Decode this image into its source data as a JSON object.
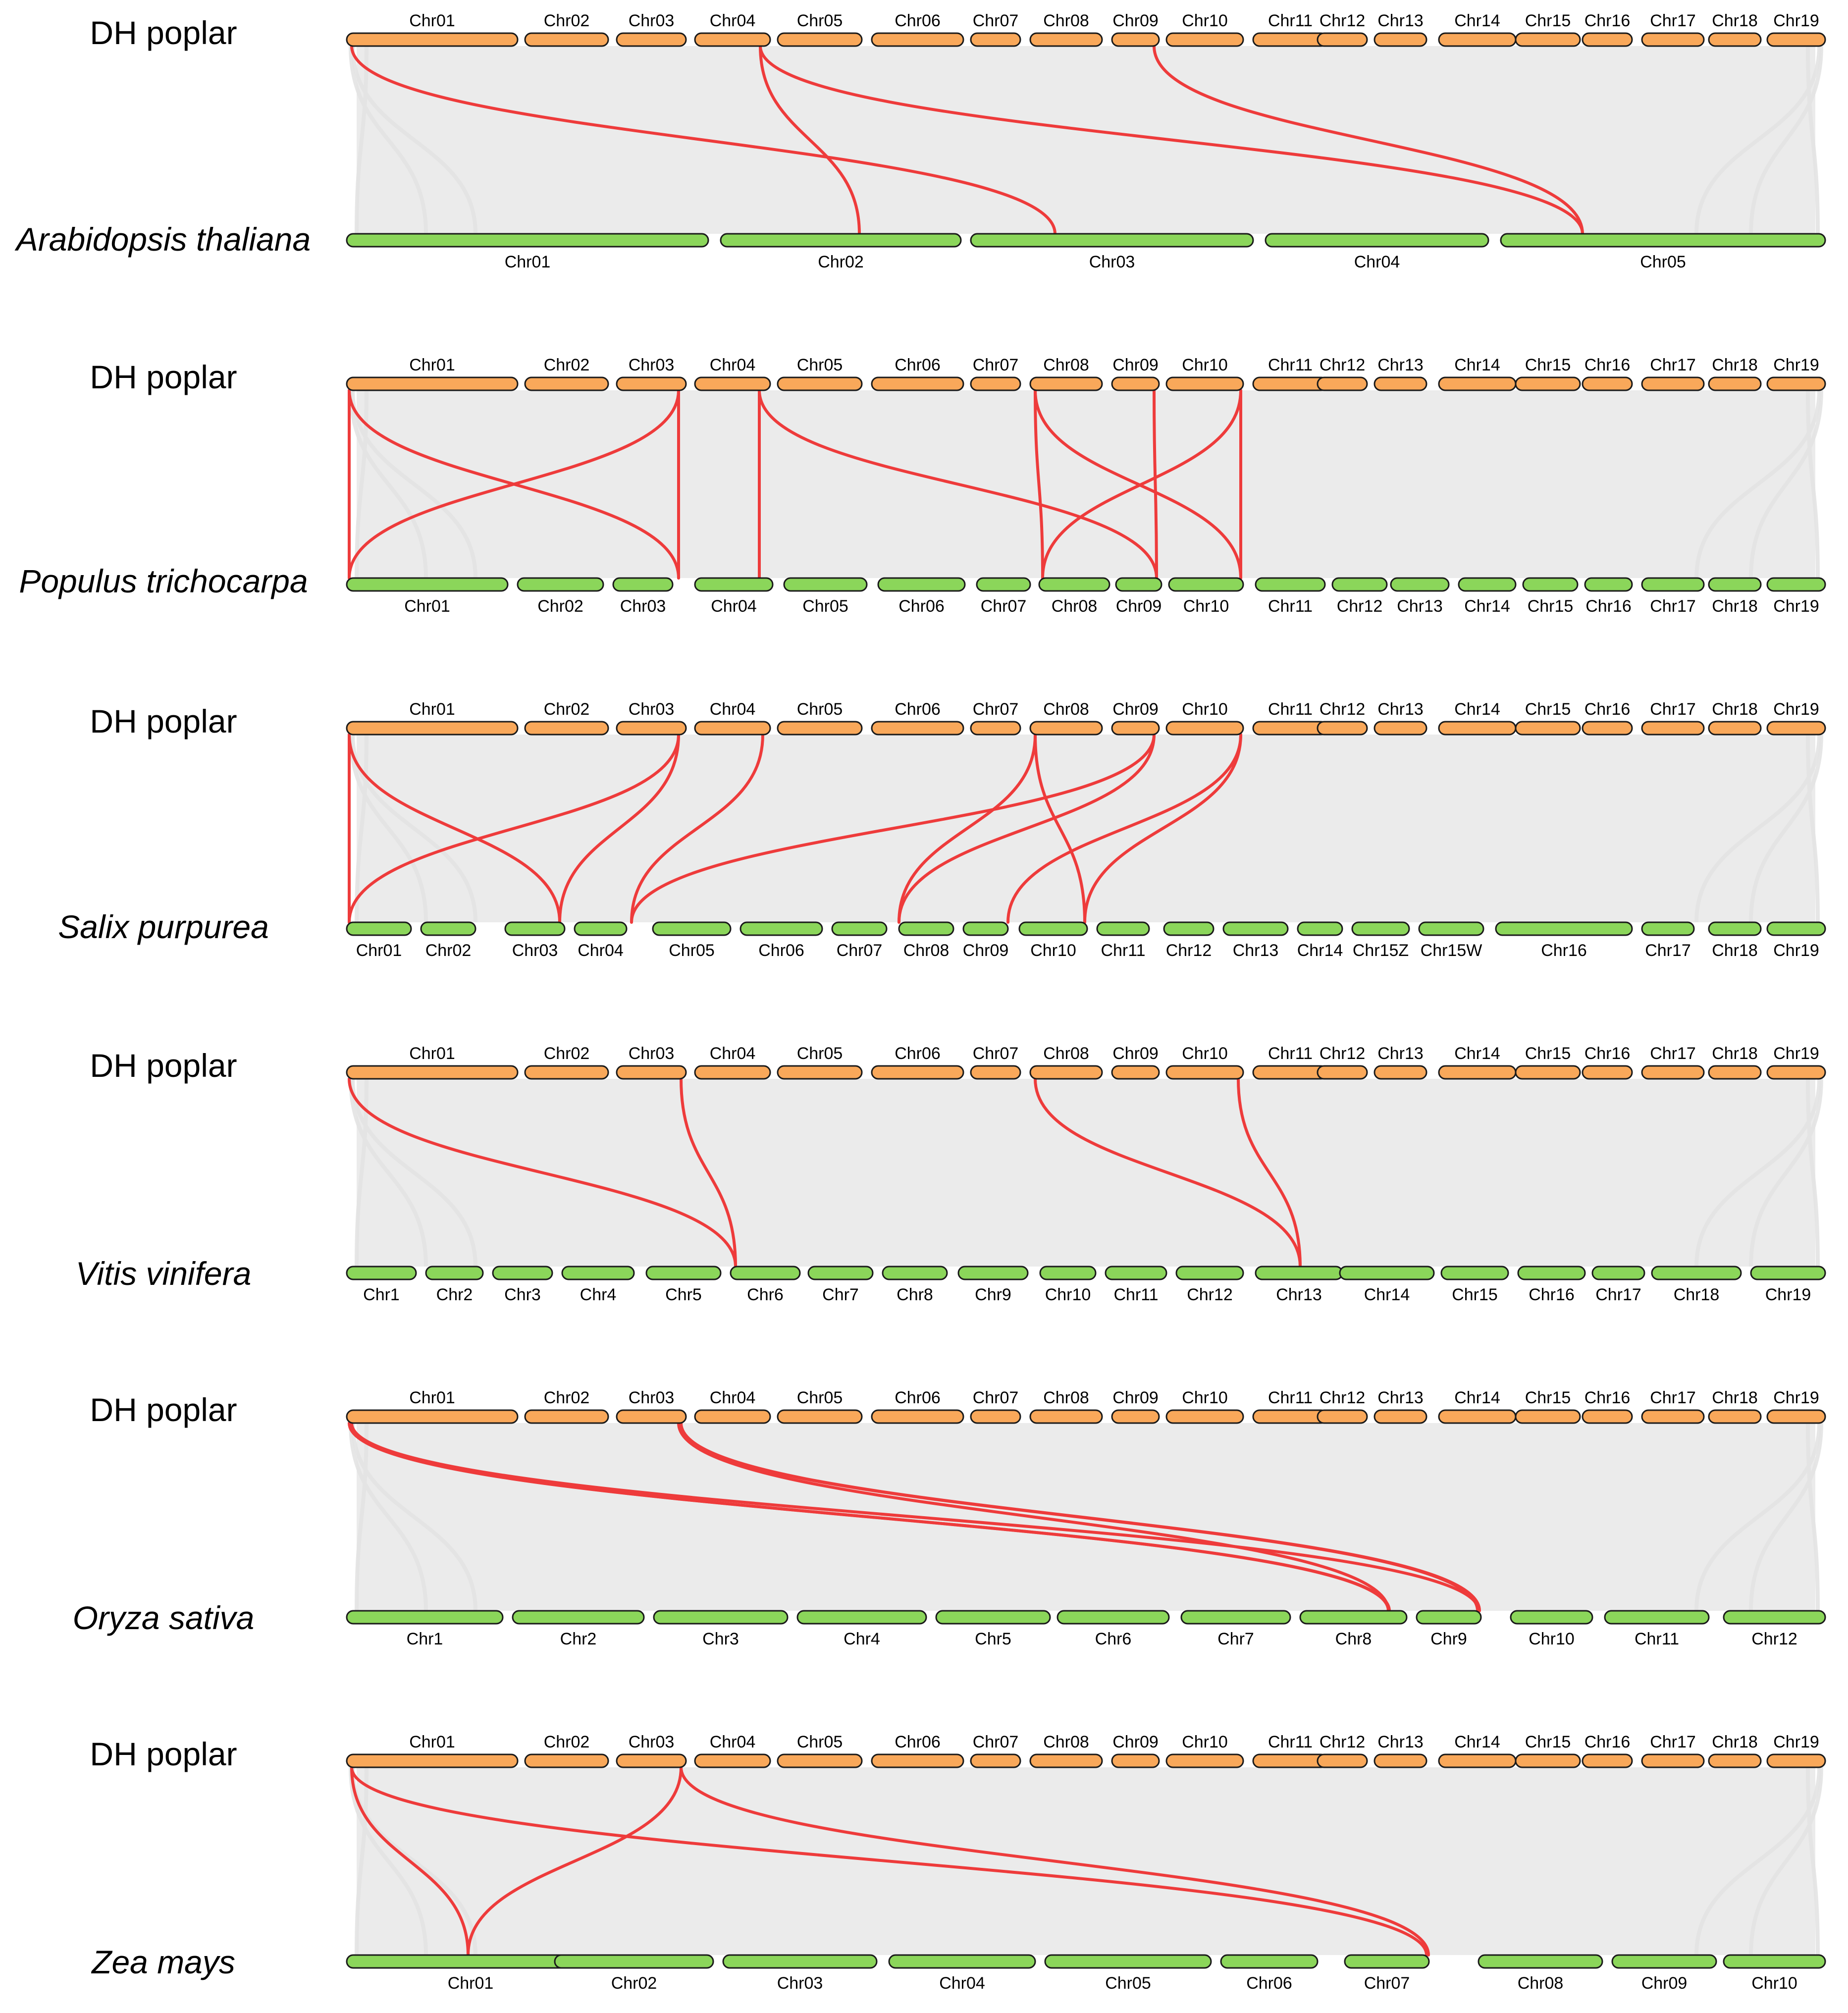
{
  "colors": {
    "reference_chromosome": "#F9A85A",
    "target_chromosome": "#8BD65A",
    "chromosome_outline": "#1a1a1a",
    "background_synteny": "#EBEBEB",
    "highlight_link": "#EE3B3B"
  },
  "reference_chromosomes": [
    "Chr01",
    "Chr02",
    "Chr03",
    "Chr04",
    "Chr05",
    "Chr06",
    "Chr07",
    "Chr08",
    "Chr09",
    "Chr10",
    "Chr11",
    "Chr12",
    "Chr13",
    "Chr14",
    "Chr15",
    "Chr16",
    "Chr17",
    "Chr18",
    "Chr19"
  ],
  "panels": [
    {
      "reference_label": "DH poplar",
      "target_label": "Arabidopsis thaliana",
      "target_chromosomes": [
        "Chr01",
        "Chr02",
        "Chr03",
        "Chr04",
        "Chr05"
      ],
      "links": [
        {
          "ref": "Chr01",
          "target": "Chr03"
        },
        {
          "ref": "Chr04",
          "target": "Chr02"
        },
        {
          "ref": "Chr04",
          "target": "Chr05"
        },
        {
          "ref": "Chr09",
          "target": "Chr05"
        }
      ]
    },
    {
      "reference_label": "DH poplar",
      "target_label": "Populus trichocarpa",
      "target_chromosomes": [
        "Chr01",
        "Chr02",
        "Chr03",
        "Chr04",
        "Chr05",
        "Chr06",
        "Chr07",
        "Chr08",
        "Chr09",
        "Chr10",
        "Chr11",
        "Chr12",
        "Chr13",
        "Chr14",
        "Chr15",
        "Chr16",
        "Chr17",
        "Chr18",
        "Chr19"
      ],
      "links": [
        {
          "ref": "Chr01",
          "target": "Chr01"
        },
        {
          "ref": "Chr01",
          "target": "Chr03"
        },
        {
          "ref": "Chr03",
          "target": "Chr01"
        },
        {
          "ref": "Chr03",
          "target": "Chr03"
        },
        {
          "ref": "Chr04",
          "target": "Chr04"
        },
        {
          "ref": "Chr04",
          "target": "Chr09"
        },
        {
          "ref": "Chr08",
          "target": "Chr08"
        },
        {
          "ref": "Chr08",
          "target": "Chr10"
        },
        {
          "ref": "Chr09",
          "target": "Chr09"
        },
        {
          "ref": "Chr10",
          "target": "Chr08"
        },
        {
          "ref": "Chr10",
          "target": "Chr10"
        }
      ]
    },
    {
      "reference_label": "DH poplar",
      "target_label": "Salix purpurea",
      "target_chromosomes": [
        "Chr01",
        "Chr02",
        "Chr03",
        "Chr04",
        "Chr05",
        "Chr06",
        "Chr07",
        "Chr08",
        "Chr09",
        "Chr10",
        "Chr11",
        "Chr12",
        "Chr13",
        "Chr14",
        "Chr15Z",
        "Chr15W",
        "Chr16",
        "Chr17",
        "Chr18",
        "Chr19"
      ],
      "links": [
        {
          "ref": "Chr01",
          "target": "Chr01"
        },
        {
          "ref": "Chr01",
          "target": "Chr03"
        },
        {
          "ref": "Chr03",
          "target": "Chr01"
        },
        {
          "ref": "Chr03",
          "target": "Chr03"
        },
        {
          "ref": "Chr04",
          "target": "Chr04"
        },
        {
          "ref": "Chr09",
          "target": "Chr04"
        },
        {
          "ref": "Chr08",
          "target": "Chr08"
        },
        {
          "ref": "Chr08",
          "target": "Chr10"
        },
        {
          "ref": "Chr09",
          "target": "Chr08"
        },
        {
          "ref": "Chr10",
          "target": "Chr09"
        },
        {
          "ref": "Chr10",
          "target": "Chr10"
        }
      ]
    },
    {
      "reference_label": "DH poplar",
      "target_label": "Vitis vinifera",
      "target_chromosomes": [
        "Chr1",
        "Chr2",
        "Chr3",
        "Chr4",
        "Chr5",
        "Chr6",
        "Chr7",
        "Chr8",
        "Chr9",
        "Chr10",
        "Chr11",
        "Chr12",
        "Chr13",
        "Chr14",
        "Chr15",
        "Chr16",
        "Chr17",
        "Chr18",
        "Chr19"
      ],
      "links": [
        {
          "ref": "Chr01",
          "target": "Chr6"
        },
        {
          "ref": "Chr03",
          "target": "Chr6"
        },
        {
          "ref": "Chr08",
          "target": "Chr13"
        },
        {
          "ref": "Chr10",
          "target": "Chr13"
        }
      ]
    },
    {
      "reference_label": "DH poplar",
      "target_label": "Oryza sativa",
      "target_chromosomes": [
        "Chr1",
        "Chr2",
        "Chr3",
        "Chr4",
        "Chr5",
        "Chr6",
        "Chr7",
        "Chr8",
        "Chr9",
        "Chr10",
        "Chr11",
        "Chr12"
      ],
      "links": [
        {
          "ref": "Chr01",
          "target": "Chr8"
        },
        {
          "ref": "Chr01",
          "target": "Chr8"
        },
        {
          "ref": "Chr01",
          "target": "Chr9"
        },
        {
          "ref": "Chr03",
          "target": "Chr8"
        },
        {
          "ref": "Chr03",
          "target": "Chr9"
        },
        {
          "ref": "Chr03",
          "target": "Chr9"
        }
      ]
    },
    {
      "reference_label": "DH poplar",
      "target_label": "Zea mays",
      "target_chromosomes": [
        "Chr01",
        "Chr02",
        "Chr03",
        "Chr04",
        "Chr05",
        "Chr06",
        "Chr07",
        "Chr08",
        "Chr09",
        "Chr10"
      ],
      "links": [
        {
          "ref": "Chr01",
          "target": "Chr01"
        },
        {
          "ref": "Chr03",
          "target": "Chr01"
        },
        {
          "ref": "Chr01",
          "target": "Chr07"
        },
        {
          "ref": "Chr03",
          "target": "Chr07"
        }
      ]
    }
  ]
}
